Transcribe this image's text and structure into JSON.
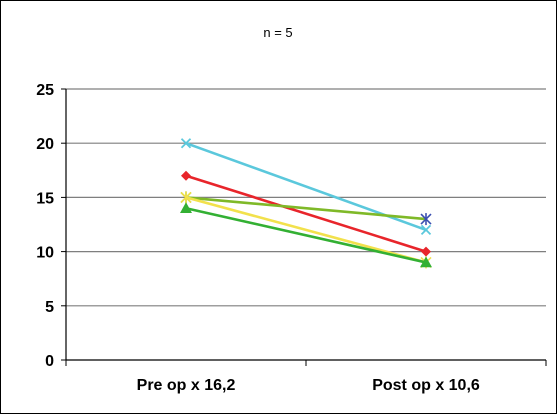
{
  "chart_data": {
    "type": "line",
    "title": "n = 5",
    "xlabel": "",
    "ylabel": "",
    "categories": [
      "Pre op x 16,2",
      "Post op x 10,6"
    ],
    "ylim": [
      0,
      25
    ],
    "yticks": [
      "0",
      "5",
      "10",
      "15",
      "20",
      "25"
    ],
    "grid": true,
    "legend": "none",
    "series": [
      {
        "values": [
          20,
          12
        ],
        "color": "#5bc8dc",
        "marker": "x"
      },
      {
        "values": [
          17,
          10
        ],
        "color": "#e8252b",
        "marker": "diamond"
      },
      {
        "values": [
          15,
          13
        ],
        "color": "#7fb928",
        "marker": "asterisk",
        "end_marker_color": "#3a4fb0"
      },
      {
        "values": [
          15,
          9
        ],
        "color": "#f2e14c",
        "marker": "asterisk"
      },
      {
        "values": [
          14,
          9
        ],
        "color": "#33b033",
        "marker": "triangle"
      }
    ],
    "colors": {
      "gridline": "#7f7f7f",
      "axis": "#000000",
      "frame": "#000000"
    }
  }
}
